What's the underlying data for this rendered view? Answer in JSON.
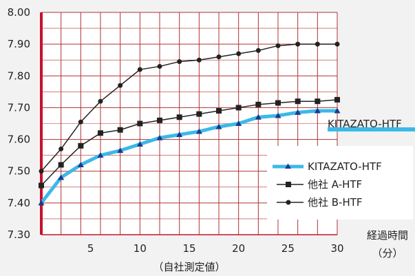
{
  "chart_data": {
    "type": "line",
    "xlabel": "経過時間",
    "xlabel_unit": "（分）",
    "note": "（自社測定値）",
    "x_ticks": [
      5,
      10,
      15,
      20,
      25,
      30
    ],
    "y_ticks": [
      "7.30",
      "7.40",
      "7.50",
      "7.60",
      "7.70",
      "7.80",
      "7.90",
      "8.00"
    ],
    "xlim": [
      0,
      30
    ],
    "ylim": [
      7.3,
      8.0
    ],
    "grid": true,
    "legend_position": "bottom-right",
    "series": [
      {
        "name": "KITAZATO-HTF",
        "color": "#3cb9e8",
        "marker": "triangle",
        "x": [
          0,
          2,
          4,
          6,
          8,
          10,
          12,
          14,
          16,
          18,
          20,
          22,
          24,
          26,
          28,
          30
        ],
        "y": [
          7.4,
          7.48,
          7.52,
          7.55,
          7.565,
          7.585,
          7.605,
          7.615,
          7.625,
          7.64,
          7.65,
          7.67,
          7.675,
          7.685,
          7.69,
          7.69
        ]
      },
      {
        "name": "他社 A-HTF",
        "color": "#222222",
        "marker": "square",
        "x": [
          0,
          2,
          4,
          6,
          8,
          10,
          12,
          14,
          16,
          18,
          20,
          22,
          24,
          26,
          28,
          30
        ],
        "y": [
          7.455,
          7.52,
          7.58,
          7.62,
          7.63,
          7.65,
          7.66,
          7.67,
          7.68,
          7.69,
          7.7,
          7.71,
          7.715,
          7.72,
          7.72,
          7.725
        ]
      },
      {
        "name": "他社 B-HTF",
        "color": "#222222",
        "marker": "circle",
        "x": [
          0,
          2,
          4,
          6,
          8,
          10,
          12,
          14,
          16,
          18,
          20,
          22,
          24,
          26,
          28,
          30
        ],
        "y": [
          7.5,
          7.57,
          7.655,
          7.72,
          7.77,
          7.82,
          7.83,
          7.845,
          7.85,
          7.86,
          7.87,
          7.88,
          7.895,
          7.9,
          7.9,
          7.9
        ]
      }
    ],
    "annotation": "KITAZATO-HTF"
  }
}
